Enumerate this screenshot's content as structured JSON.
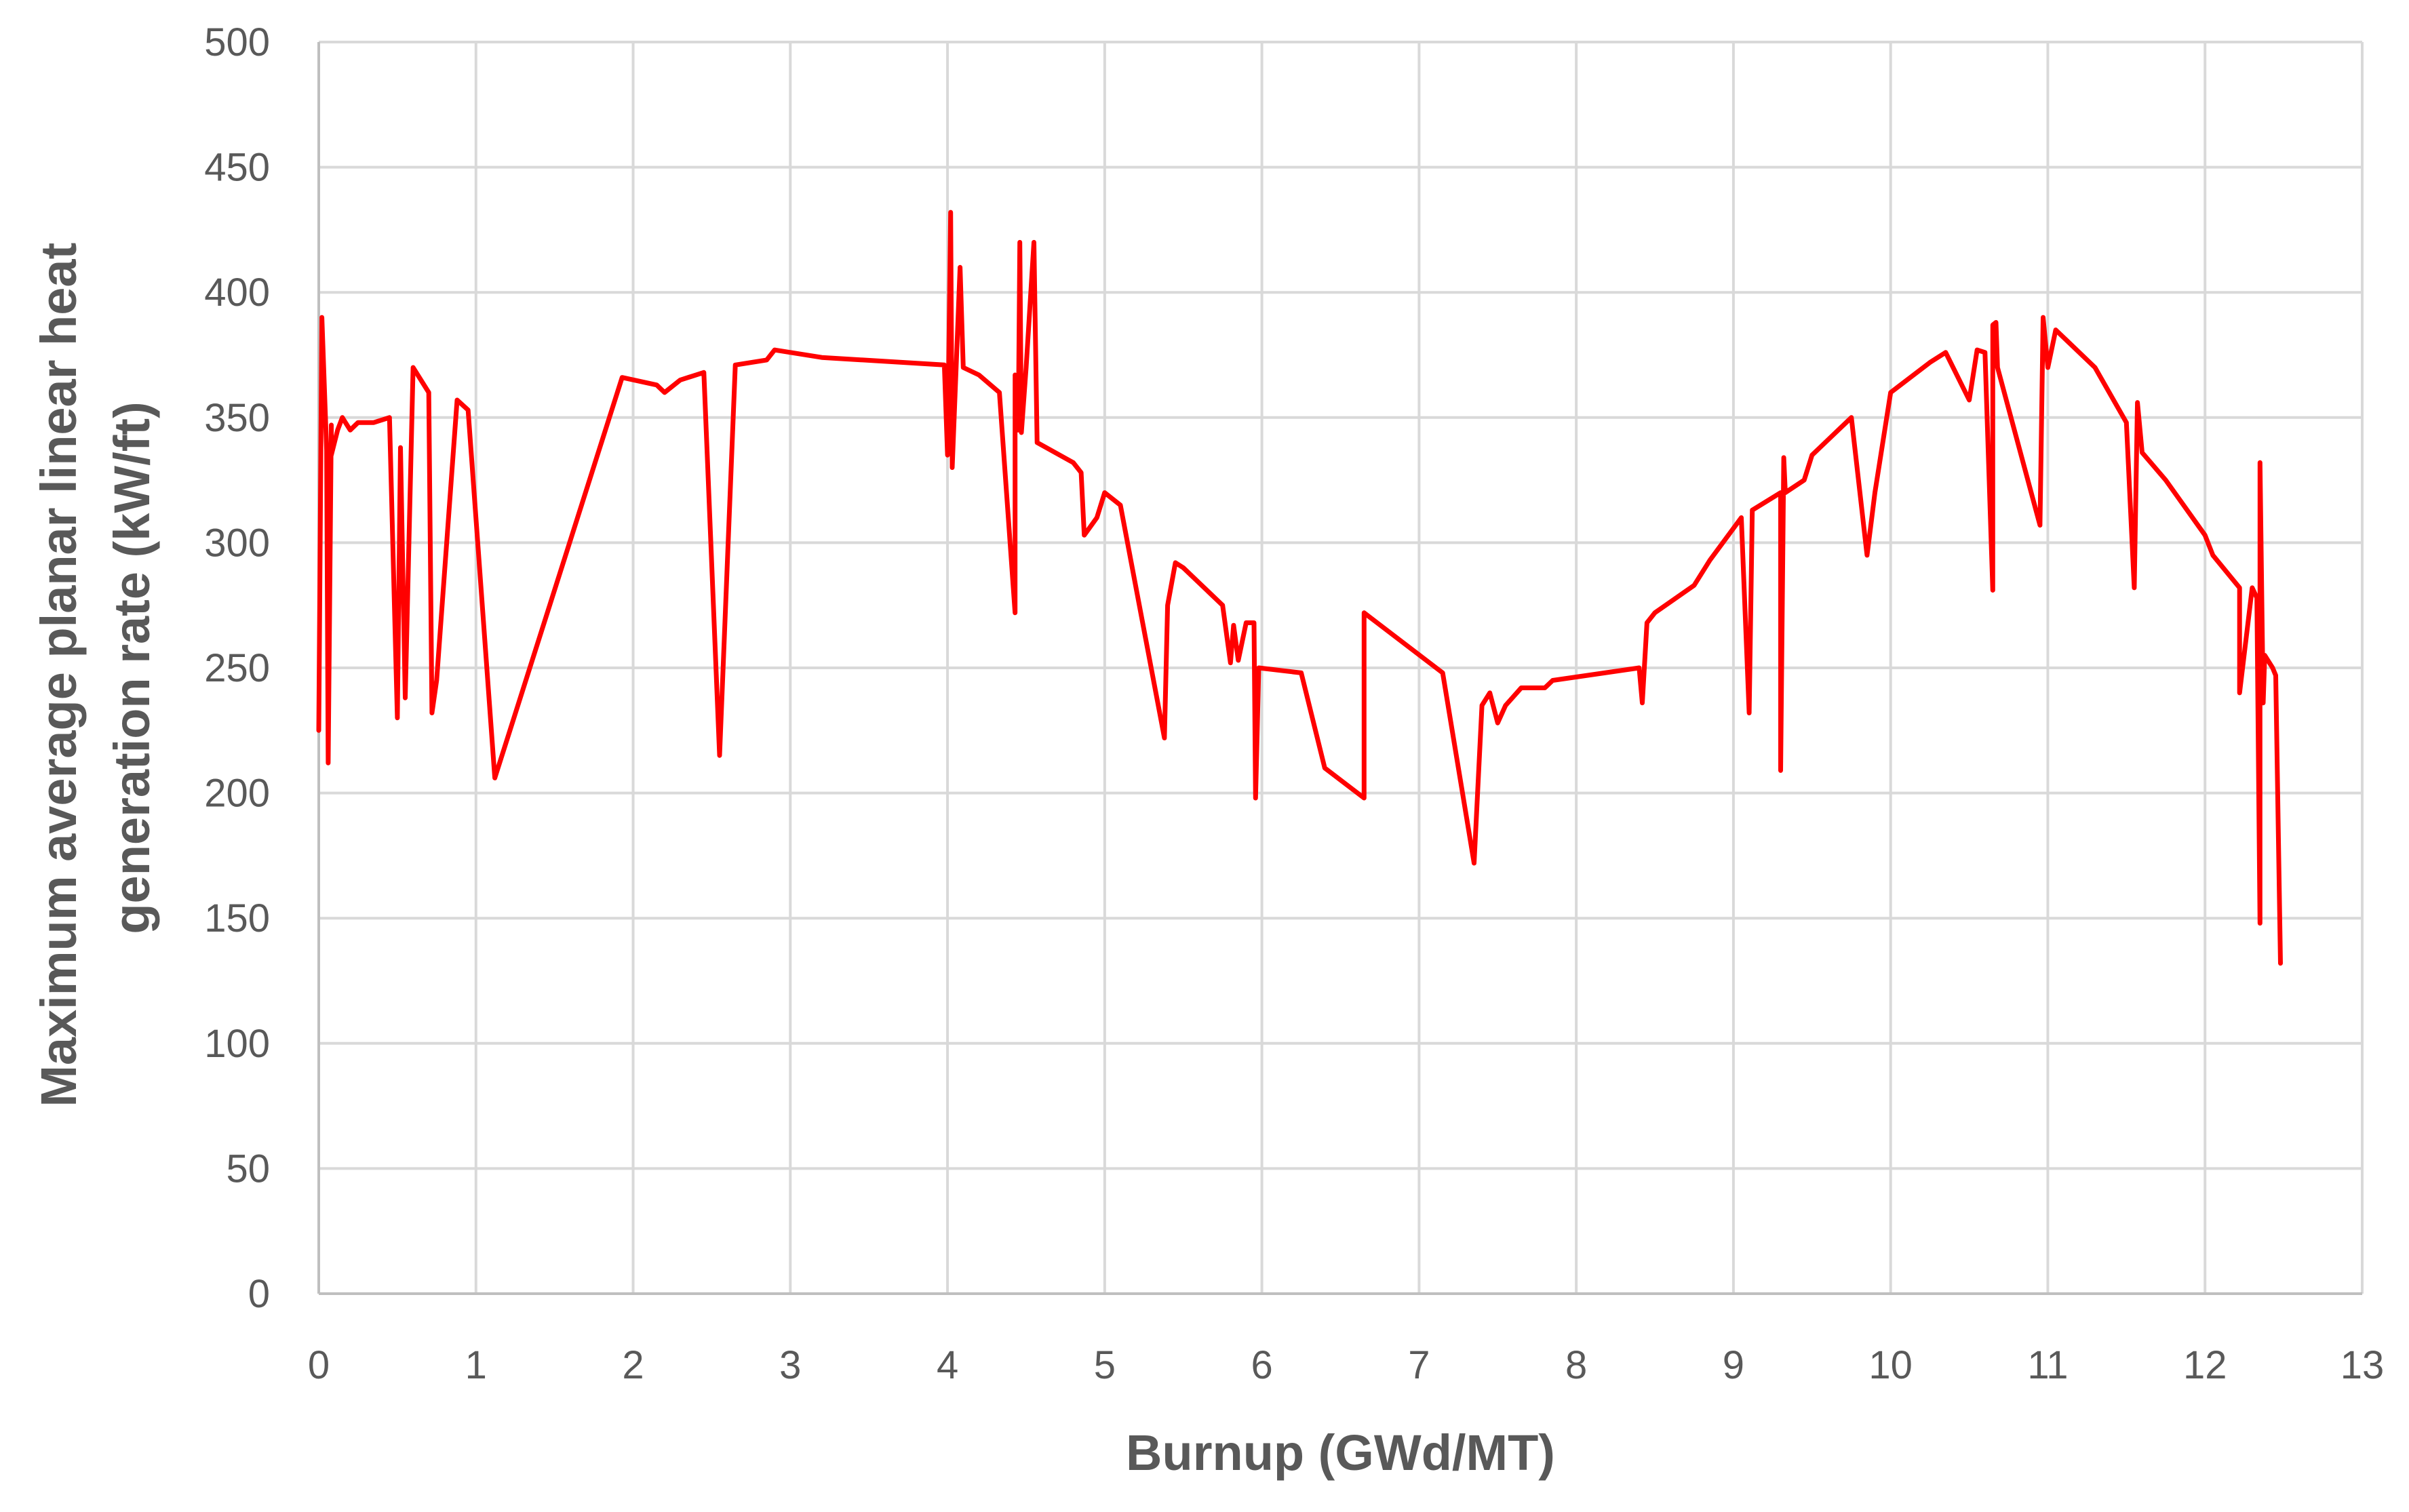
{
  "chart_data": {
    "type": "line",
    "title": "",
    "xlabel": "Burnup (GWd/MT)",
    "ylabel_lines": [
      "Maximum average planar linear heat",
      "generation rate (kW/ft)"
    ],
    "xlim": [
      0,
      13
    ],
    "ylim": [
      0,
      500
    ],
    "x_ticks": [
      0,
      1,
      2,
      3,
      4,
      5,
      6,
      7,
      8,
      9,
      10,
      11,
      12,
      13
    ],
    "y_ticks": [
      0,
      50,
      100,
      150,
      200,
      250,
      300,
      350,
      400,
      450,
      500
    ],
    "grid": true,
    "legend": "none",
    "colors": {
      "series": "#ff0000",
      "grid": "#d9d9d9",
      "text": "#595959"
    },
    "series": [
      {
        "x": [
          0.0,
          0.02,
          0.05,
          0.06,
          0.08,
          0.08,
          0.12,
          0.15,
          0.2,
          0.25,
          0.3,
          0.35,
          0.45,
          0.5,
          0.52,
          0.55,
          0.6,
          0.65,
          0.7,
          0.72,
          0.75,
          0.88,
          0.95,
          1.12,
          1.93,
          2.15,
          2.2,
          2.3,
          2.45,
          2.55,
          2.65,
          2.85,
          2.9,
          3.2,
          3.98,
          4.0,
          4.02,
          4.03,
          4.08,
          4.1,
          4.2,
          4.33,
          4.43,
          4.43,
          4.45,
          4.46,
          4.47,
          4.5,
          4.55,
          4.57,
          4.8,
          4.85,
          4.87,
          4.95,
          5.0,
          5.1,
          5.38,
          5.4,
          5.45,
          5.5,
          5.75,
          5.8,
          5.82,
          5.85,
          5.9,
          5.95,
          5.96,
          5.98,
          6.25,
          6.4,
          6.65,
          6.65,
          7.15,
          7.35,
          7.4,
          7.45,
          7.5,
          7.55,
          7.65,
          7.8,
          7.85,
          8.4,
          8.42,
          8.45,
          8.5,
          8.75,
          8.85,
          9.05,
          9.1,
          9.12,
          9.3,
          9.3,
          9.32,
          9.33,
          9.45,
          9.5,
          9.55,
          9.75,
          9.85,
          9.88,
          9.9,
          10.0,
          10.25,
          10.35,
          10.5,
          10.55,
          10.6,
          10.65,
          10.65,
          10.67,
          10.68,
          10.95,
          10.97,
          11.0,
          11.05,
          11.3,
          11.5,
          11.55,
          11.57,
          11.6,
          11.75,
          12.0,
          12.05,
          12.22,
          12.22,
          12.3,
          12.33,
          12.35,
          12.35,
          12.37,
          12.38,
          12.43,
          12.45,
          12.48
        ],
        "y": [
          225,
          390,
          337,
          212,
          347,
          335,
          345,
          350,
          345,
          348,
          348,
          348,
          350,
          230,
          338,
          238,
          370,
          365,
          360,
          232,
          245,
          357,
          353,
          206,
          366,
          363,
          360,
          365,
          368,
          215,
          371,
          373,
          377,
          374,
          371,
          335,
          432,
          330,
          410,
          370,
          367,
          360,
          272,
          367,
          345,
          420,
          344,
          370,
          420,
          340,
          332,
          328,
          303,
          310,
          320,
          315,
          222,
          275,
          292,
          290,
          275,
          252,
          267,
          253,
          268,
          268,
          198,
          250,
          248,
          210,
          198,
          272,
          248,
          172,
          235,
          240,
          228,
          235,
          242,
          242,
          245,
          250,
          236,
          268,
          272,
          283,
          293,
          310,
          232,
          313,
          320,
          209,
          334,
          320,
          325,
          335,
          338,
          350,
          295,
          310,
          320,
          360,
          372,
          376,
          357,
          377,
          376,
          281,
          387,
          388,
          370,
          307,
          390,
          370,
          385,
          370,
          348,
          282,
          356,
          336,
          325,
          303,
          295,
          282,
          240,
          282,
          278,
          148,
          332,
          236,
          255,
          250,
          247,
          132
        ]
      }
    ]
  }
}
